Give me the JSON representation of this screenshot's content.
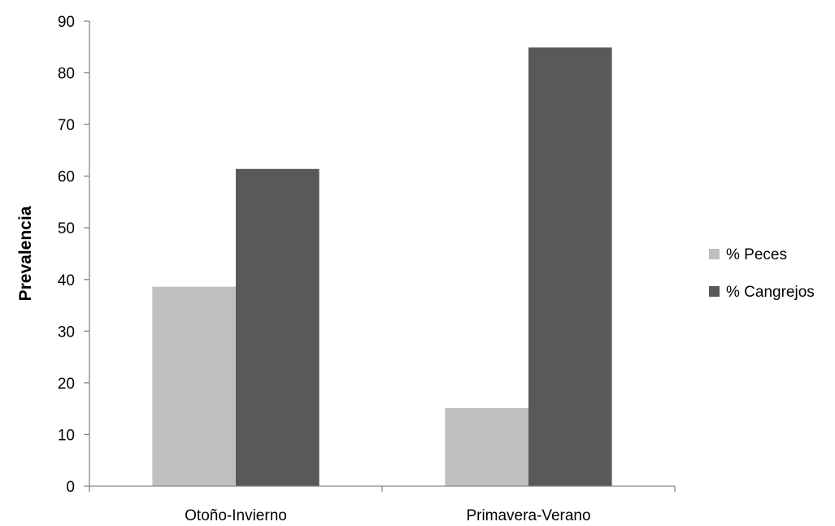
{
  "chart_data": {
    "type": "bar",
    "categories": [
      "Otoño-Invierno",
      "Primavera-Verano"
    ],
    "series": [
      {
        "name": "% Peces",
        "values": [
          38.6,
          15.1
        ],
        "color": "#bfbfbf"
      },
      {
        "name": "% Cangrejos",
        "values": [
          61.4,
          84.9
        ],
        "color": "#595959"
      }
    ],
    "title": "",
    "xlabel": "",
    "ylabel": "Prevalencia",
    "ylim": [
      0,
      90
    ],
    "yticks": [
      0,
      10,
      20,
      30,
      40,
      50,
      60,
      70,
      80,
      90
    ],
    "grid": false,
    "legend_position": "right"
  }
}
